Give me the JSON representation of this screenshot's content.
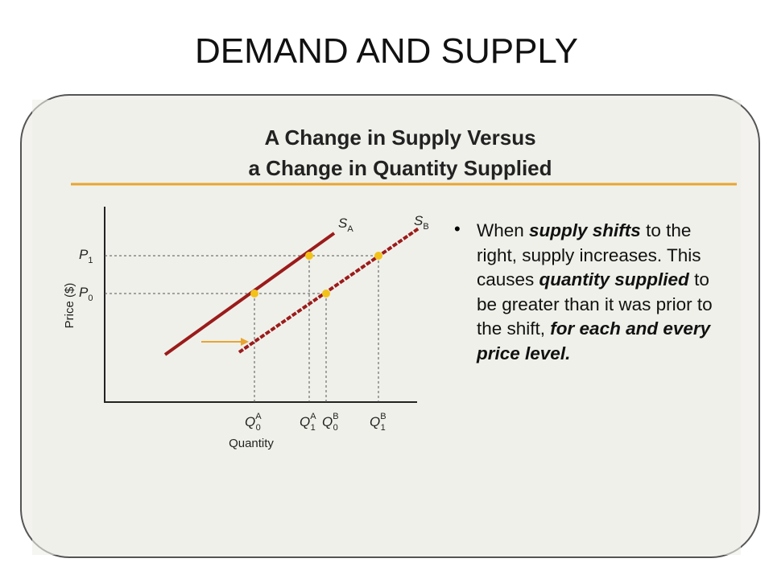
{
  "header": {
    "title": "DEMAND AND SUPPLY"
  },
  "figure": {
    "title_lines": [
      "A Change in Supply Versus",
      "a Change in Quantity Supplied"
    ],
    "y_axis_label": "Price ($)",
    "x_axis_label": "Quantity",
    "price_labels": [
      {
        "base": "P",
        "sub": "1"
      },
      {
        "base": "P",
        "sub": "0"
      }
    ],
    "curve_labels": [
      {
        "base": "S",
        "sub": "A"
      },
      {
        "base": "S",
        "sub": "B"
      }
    ],
    "quantity_labels": [
      {
        "base": "Q",
        "sub": "0",
        "sup": "A"
      },
      {
        "base": "Q",
        "sub": "1",
        "sup": "A"
      },
      {
        "base": "Q",
        "sub": "0",
        "sup": "B"
      },
      {
        "base": "Q",
        "sub": "1",
        "sup": "B"
      }
    ],
    "bullet": [
      {
        "text": "When ",
        "emphasis": false
      },
      {
        "text": "supply shifts",
        "emphasis": true
      },
      {
        "text": " to the right, supply increases. This causes ",
        "emphasis": false
      },
      {
        "text": "quantity supplied",
        "emphasis": true
      },
      {
        "text": " to be greater than it was prior to the shift, ",
        "emphasis": false
      },
      {
        "text": "for each and every price level.",
        "emphasis": true
      }
    ]
  }
}
